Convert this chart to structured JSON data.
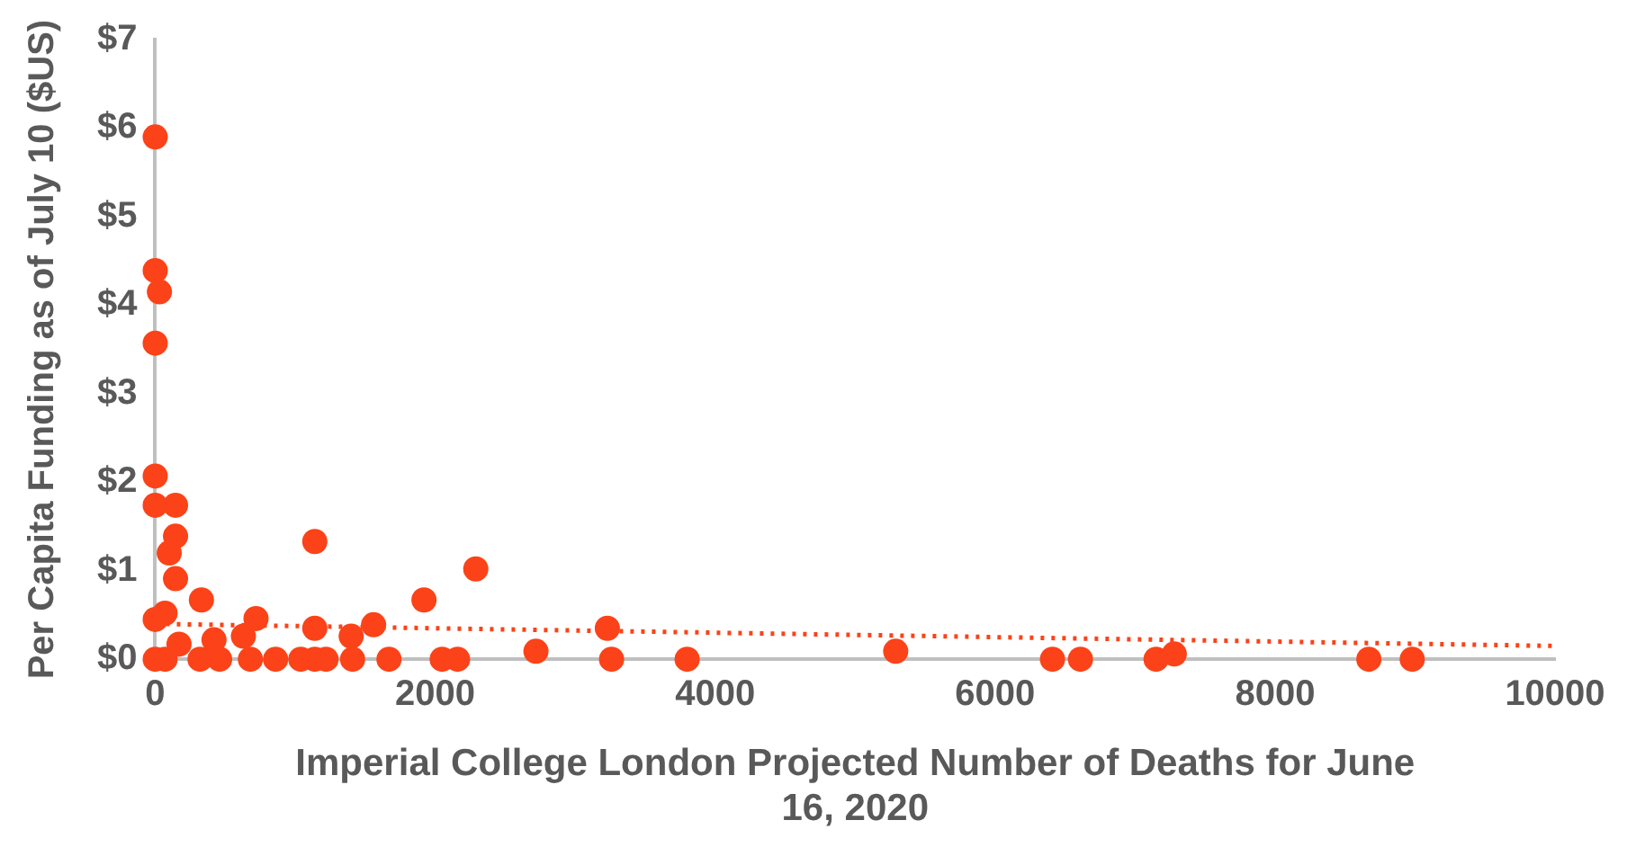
{
  "chart_data": {
    "type": "scatter",
    "xlabel": "Imperial College London Projected Number of Deaths for June 16, 2020",
    "ylabel": "Per Capita Funding as of July 10 ($US)",
    "xlim": [
      0,
      10000
    ],
    "xticks": [
      0,
      2000,
      4000,
      6000,
      8000,
      10000
    ],
    "ylim": [
      0,
      7
    ],
    "yticks": [
      {
        "value": 0,
        "label": "$0"
      },
      {
        "value": 1,
        "label": "$1"
      },
      {
        "value": 2,
        "label": "$2"
      },
      {
        "value": 3,
        "label": "$3"
      },
      {
        "value": 4,
        "label": "$4"
      },
      {
        "value": 5,
        "label": "$5"
      },
      {
        "value": 6,
        "label": "$6"
      },
      {
        "value": 7,
        "label": "$7"
      }
    ],
    "grid": false,
    "legend": false,
    "marker": "circle",
    "series": [
      {
        "type": "scatter",
        "color": "#fc4218",
        "x": [
          0,
          0,
          30,
          0,
          0,
          0,
          145,
          145,
          100,
          145,
          330,
          1140,
          2290,
          1920,
          1560,
          1400,
          1140,
          720,
          70,
          0,
          170,
          420,
          630,
          3230,
          2720,
          0,
          70,
          320,
          460,
          680,
          860,
          1040,
          1140,
          1220,
          1410,
          1670,
          2050,
          2160,
          3260,
          3800,
          5290,
          6410,
          6610,
          7150,
          7280,
          8670,
          8980
        ],
        "values": [
          5.9,
          4.39,
          4.15,
          3.57,
          2.07,
          1.74,
          1.74,
          1.39,
          1.2,
          0.91,
          0.67,
          1.33,
          1.02,
          0.67,
          0.39,
          0.26,
          0.35,
          0.46,
          0.52,
          0.45,
          0.17,
          0.22,
          0.26,
          0.35,
          0.09,
          0,
          0,
          0,
          0,
          0,
          0,
          0,
          0,
          0,
          0,
          0,
          0,
          0,
          0,
          0,
          0.09,
          0,
          0,
          0,
          0.06,
          0,
          0
        ]
      },
      {
        "type": "line",
        "color": "#fc4218",
        "line_style": "dotted",
        "marker": "none",
        "x": [
          0,
          10000
        ],
        "values": [
          0.4,
          0.15
        ]
      }
    ]
  }
}
